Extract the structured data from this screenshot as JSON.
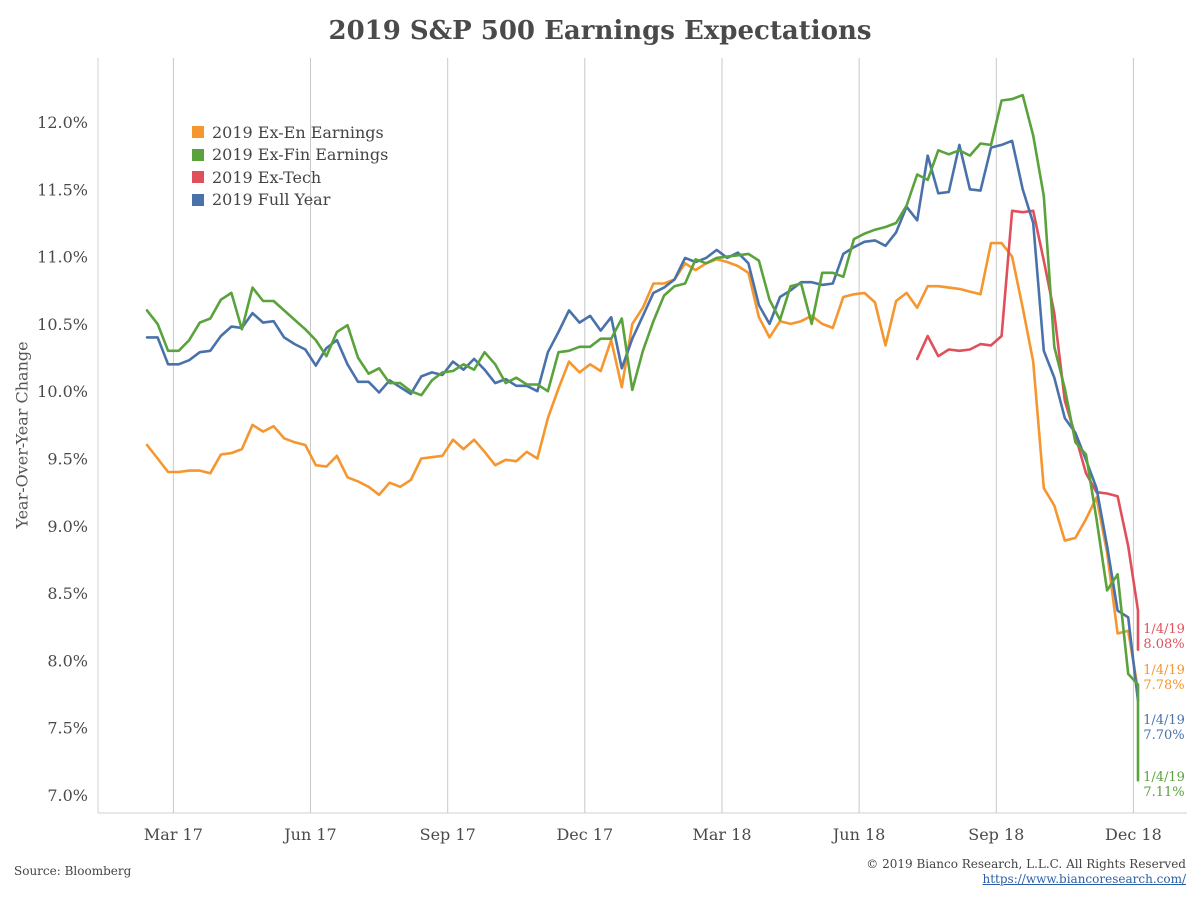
{
  "title": "2019 S&P 500 Earnings Expectations",
  "source": "Source: Bloomberg",
  "copyright": "© 2019 Bianco Research, L.L.C. All Rights Reserved",
  "url": "https://www.biancoresearch.com/",
  "chart_data": {
    "type": "line",
    "title": "2019 S&P 500 Earnings Expectations",
    "ylabel": "Year-Over-Year Change",
    "xlabel": "",
    "ylim": [
      6.9,
      12.55
    ],
    "yticks": [
      "7.0%",
      "7.5%",
      "8.0%",
      "8.5%",
      "9.0%",
      "9.5%",
      "10.0%",
      "10.5%",
      "11.0%",
      "11.5%",
      "12.0%"
    ],
    "ytick_values": [
      7.0,
      7.5,
      8.0,
      8.5,
      9.0,
      9.5,
      10.0,
      10.5,
      11.0,
      11.5,
      12.0
    ],
    "x_range_weeks": [
      0,
      90
    ],
    "xticks": [
      {
        "label": "Mar 17",
        "week": 2.5
      },
      {
        "label": "Jun 17",
        "week": 15.5
      },
      {
        "label": "Sep 17",
        "week": 28.5
      },
      {
        "label": "Dec 17",
        "week": 41.5
      },
      {
        "label": "Mar 18",
        "week": 54.5
      },
      {
        "label": "Jun 18",
        "week": 67.5
      },
      {
        "label": "Sep 18",
        "week": 80.5
      },
      {
        "label": "Dec 18",
        "week": 93.5
      }
    ],
    "grid": "vertical",
    "legend_position": "top-left",
    "series": [
      {
        "name": "2019 Ex-En Earnings",
        "color": "#f5962e",
        "start_week": 0,
        "values": [
          9.6,
          9.5,
          9.4,
          9.4,
          9.41,
          9.41,
          9.39,
          9.53,
          9.54,
          9.57,
          9.75,
          9.7,
          9.74,
          9.65,
          9.62,
          9.6,
          9.45,
          9.44,
          9.52,
          9.36,
          9.33,
          9.29,
          9.23,
          9.32,
          9.29,
          9.34,
          9.5,
          9.51,
          9.52,
          9.64,
          9.57,
          9.64,
          9.55,
          9.45,
          9.49,
          9.48,
          9.55,
          9.5,
          9.8,
          10.02,
          10.22,
          10.14,
          10.2,
          10.15,
          10.38,
          10.03,
          10.5,
          10.62,
          10.8,
          10.8,
          10.83,
          10.95,
          10.9,
          10.95,
          10.98,
          10.96,
          10.93,
          10.88,
          10.55,
          10.4,
          10.52,
          10.5,
          10.52,
          10.56,
          10.5,
          10.47,
          10.7,
          10.72,
          10.73,
          10.66,
          10.34,
          10.67,
          10.73,
          10.62,
          10.78,
          10.78,
          10.77,
          10.76,
          10.74,
          10.72,
          11.1,
          11.1,
          11.0,
          10.62,
          10.22,
          9.28,
          9.15,
          8.89,
          8.91,
          9.05,
          9.21,
          8.8,
          8.2,
          8.22,
          7.78
        ]
      },
      {
        "name": "2019 Ex-Fin Earnings",
        "color": "#5aa23c",
        "start_week": 0,
        "values": [
          10.6,
          10.5,
          10.3,
          10.3,
          10.38,
          10.51,
          10.54,
          10.68,
          10.73,
          10.46,
          10.77,
          10.67,
          10.67,
          10.6,
          10.53,
          10.46,
          10.38,
          10.26,
          10.44,
          10.49,
          10.25,
          10.13,
          10.17,
          10.06,
          10.06,
          10.0,
          9.97,
          10.08,
          10.14,
          10.15,
          10.2,
          10.16,
          10.29,
          10.2,
          10.06,
          10.1,
          10.05,
          10.05,
          10.0,
          10.29,
          10.3,
          10.33,
          10.33,
          10.39,
          10.39,
          10.54,
          10.01,
          10.3,
          10.52,
          10.71,
          10.78,
          10.8,
          10.98,
          10.95,
          10.99,
          11.0,
          11.01,
          11.02,
          10.97,
          10.68,
          10.53,
          10.78,
          10.8,
          10.5,
          10.88,
          10.88,
          10.85,
          11.13,
          11.17,
          11.2,
          11.22,
          11.25,
          11.38,
          11.61,
          11.57,
          11.79,
          11.76,
          11.79,
          11.75,
          11.84,
          11.83,
          12.16,
          12.17,
          12.2,
          11.9,
          11.45,
          10.33,
          10.02,
          9.62,
          9.53,
          9.05,
          8.52,
          8.64,
          7.9,
          7.82,
          7.11
        ]
      },
      {
        "name": "2019 Ex-Tech",
        "color": "#e0505a",
        "start_week": 73,
        "values": [
          10.24,
          10.41,
          10.26,
          10.31,
          10.3,
          10.31,
          10.35,
          10.34,
          10.41,
          11.34,
          11.33,
          11.34,
          10.97,
          10.58,
          9.93,
          9.67,
          9.39,
          9.25,
          9.24,
          9.22,
          8.85,
          8.37,
          8.3,
          8.08
        ]
      },
      {
        "name": "2019 Full Year",
        "color": "#4a72aa",
        "start_week": 0,
        "values": [
          10.4,
          10.4,
          10.2,
          10.2,
          10.23,
          10.29,
          10.3,
          10.41,
          10.48,
          10.47,
          10.58,
          10.51,
          10.52,
          10.4,
          10.35,
          10.31,
          10.19,
          10.32,
          10.38,
          10.2,
          10.07,
          10.07,
          9.99,
          10.08,
          10.03,
          9.98,
          10.11,
          10.14,
          10.12,
          10.22,
          10.16,
          10.24,
          10.16,
          10.06,
          10.09,
          10.04,
          10.04,
          10.0,
          10.29,
          10.44,
          10.6,
          10.51,
          10.56,
          10.45,
          10.55,
          10.17,
          10.39,
          10.56,
          10.73,
          10.77,
          10.83,
          10.99,
          10.96,
          10.99,
          11.05,
          10.99,
          11.03,
          10.95,
          10.64,
          10.5,
          10.7,
          10.75,
          10.81,
          10.81,
          10.79,
          10.8,
          11.02,
          11.07,
          11.11,
          11.12,
          11.08,
          11.18,
          11.37,
          11.27,
          11.75,
          11.47,
          11.48,
          11.83,
          11.5,
          11.49,
          11.81,
          11.83,
          11.86,
          11.5,
          11.25,
          10.3,
          10.1,
          9.8,
          9.69,
          9.49,
          9.28,
          8.85,
          8.37,
          8.32,
          7.7
        ]
      }
    ],
    "annotations": [
      {
        "date": "1/4/19",
        "value": "8.08%",
        "color": "#e0505a"
      },
      {
        "date": "1/4/19",
        "value": "7.78%",
        "color": "#f5962e"
      },
      {
        "date": "1/4/19",
        "value": "7.70%",
        "color": "#4a72aa"
      },
      {
        "date": "1/4/19",
        "value": "7.11%",
        "color": "#5aa23c"
      }
    ]
  }
}
